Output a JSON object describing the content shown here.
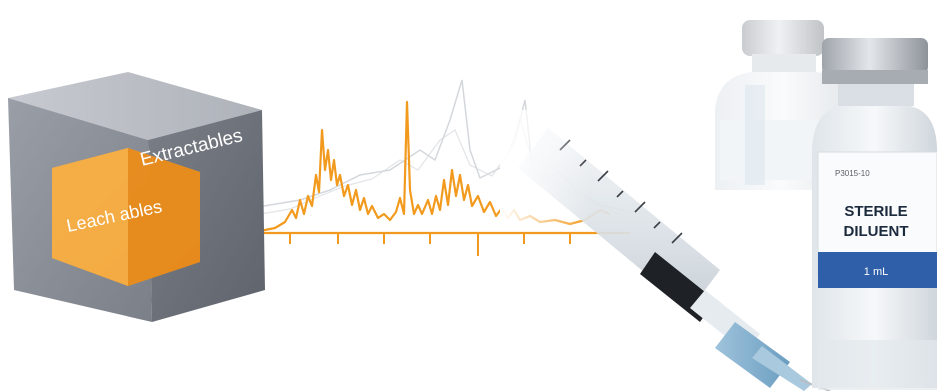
{
  "cube": {
    "outer_label": "Extractables",
    "inner_label": "Leach ables"
  },
  "vial_front": {
    "code": "P3015-10",
    "line1": "STERILE",
    "line2": "DILUENT",
    "volume": "1 mL"
  },
  "colors": {
    "cube_top": "#b9bcc2",
    "cube_front": "#8a8e96",
    "cube_side": "#6e727a",
    "inner_orange": "#f2a33a",
    "trace_orange": "#f29a1e",
    "trace_gray": "#c9ccd2",
    "vial_cap": "#bfc3c9",
    "vial_band": "#2f5fa8"
  }
}
